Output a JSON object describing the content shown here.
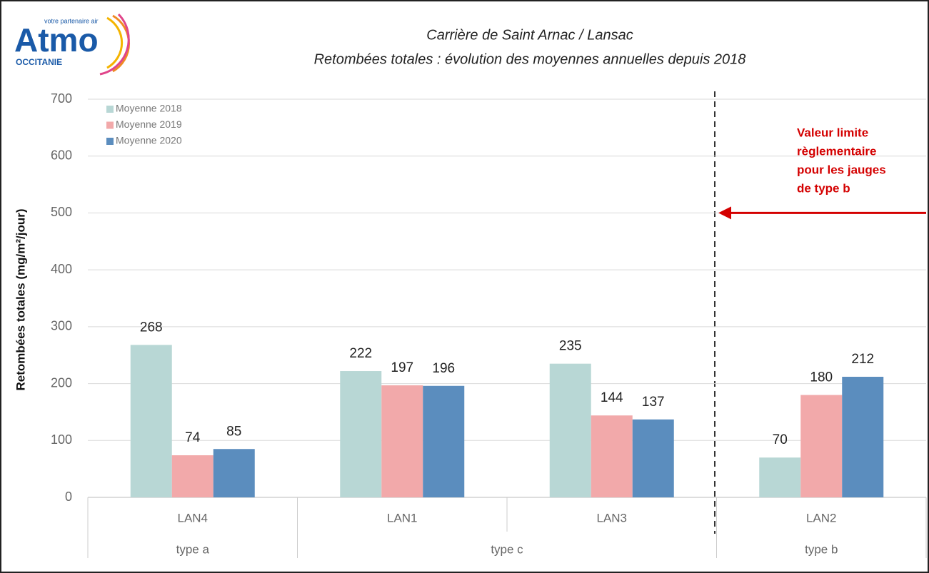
{
  "logo": {
    "name": "Atmo",
    "tagline": "votre partenaire air",
    "region": "OCCITANIE"
  },
  "chart_data": {
    "type": "bar",
    "title": "Carrière de Saint Arnac / Lansac",
    "subtitle": "Retombées totales : évolution des moyennes annuelles depuis 2018",
    "ylabel": "Retombées totales (mg/m²/jour)",
    "categories": [
      "LAN4",
      "LAN1",
      "LAN3",
      "LAN2"
    ],
    "groups": [
      {
        "label": "type a",
        "categories": [
          "LAN4"
        ]
      },
      {
        "label": "type c",
        "categories": [
          "LAN1",
          "LAN3"
        ]
      },
      {
        "label": "type b",
        "categories": [
          "LAN2"
        ]
      }
    ],
    "series": [
      {
        "name": "Moyenne 2018",
        "color": "#b8d7d5",
        "values": [
          268,
          222,
          235,
          70
        ]
      },
      {
        "name": "Moyenne 2019",
        "color": "#f2a9aa",
        "values": [
          74,
          197,
          144,
          180
        ]
      },
      {
        "name": "Moyenne 2020",
        "color": "#5b8dbe",
        "values": [
          85,
          196,
          137,
          212
        ]
      }
    ],
    "ylim": [
      0,
      700
    ],
    "yticks": [
      0,
      100,
      200,
      300,
      400,
      500,
      600,
      700
    ],
    "grid": true,
    "legend": "upper left",
    "limit": {
      "value": 500,
      "label_lines": [
        "Valeur limite",
        "règlementaire",
        "pour les jauges",
        "de type b"
      ],
      "color": "#d40000"
    }
  }
}
